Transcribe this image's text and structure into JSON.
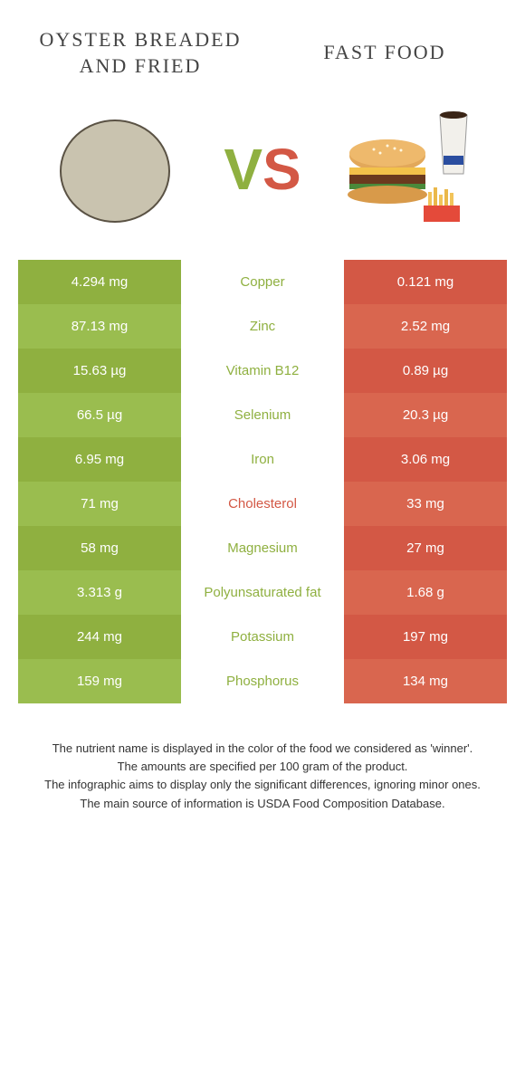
{
  "colors": {
    "left_food": "#8fb040",
    "right_food": "#d35845",
    "row_left_bg": "#8fb040",
    "row_right_bg": "#d35845",
    "row_left_bg_alt": "#9abd4f",
    "row_right_bg_alt": "#d9664f",
    "nutrient_winner_left": "#8fb040",
    "nutrient_winner_right": "#d35845"
  },
  "foods": {
    "left": {
      "name": "Oyster breaded and fried"
    },
    "right": {
      "name": "Fast food"
    }
  },
  "vs": {
    "v": "V",
    "s": "S"
  },
  "rows": [
    {
      "nutrient": "Copper",
      "left": "4.294 mg",
      "right": "0.121 mg",
      "winner": "left"
    },
    {
      "nutrient": "Zinc",
      "left": "87.13 mg",
      "right": "2.52 mg",
      "winner": "left"
    },
    {
      "nutrient": "Vitamin B12",
      "left": "15.63 µg",
      "right": "0.89 µg",
      "winner": "left"
    },
    {
      "nutrient": "Selenium",
      "left": "66.5 µg",
      "right": "20.3 µg",
      "winner": "left"
    },
    {
      "nutrient": "Iron",
      "left": "6.95 mg",
      "right": "3.06 mg",
      "winner": "left"
    },
    {
      "nutrient": "Cholesterol",
      "left": "71 mg",
      "right": "33 mg",
      "winner": "right"
    },
    {
      "nutrient": "Magnesium",
      "left": "58 mg",
      "right": "27 mg",
      "winner": "left"
    },
    {
      "nutrient": "Polyunsaturated fat",
      "left": "3.313 g",
      "right": "1.68 g",
      "winner": "left"
    },
    {
      "nutrient": "Potassium",
      "left": "244 mg",
      "right": "197 mg",
      "winner": "left"
    },
    {
      "nutrient": "Phosphorus",
      "left": "159 mg",
      "right": "134 mg",
      "winner": "left"
    }
  ],
  "footer": {
    "line1": "The nutrient name is displayed in the color of the food we considered as 'winner'.",
    "line2": "The amounts are specified per 100 gram of the product.",
    "line3": "The infographic aims to display only the significant differences, ignoring minor ones.",
    "line4": "The main source of information is USDA Food Composition Database."
  }
}
